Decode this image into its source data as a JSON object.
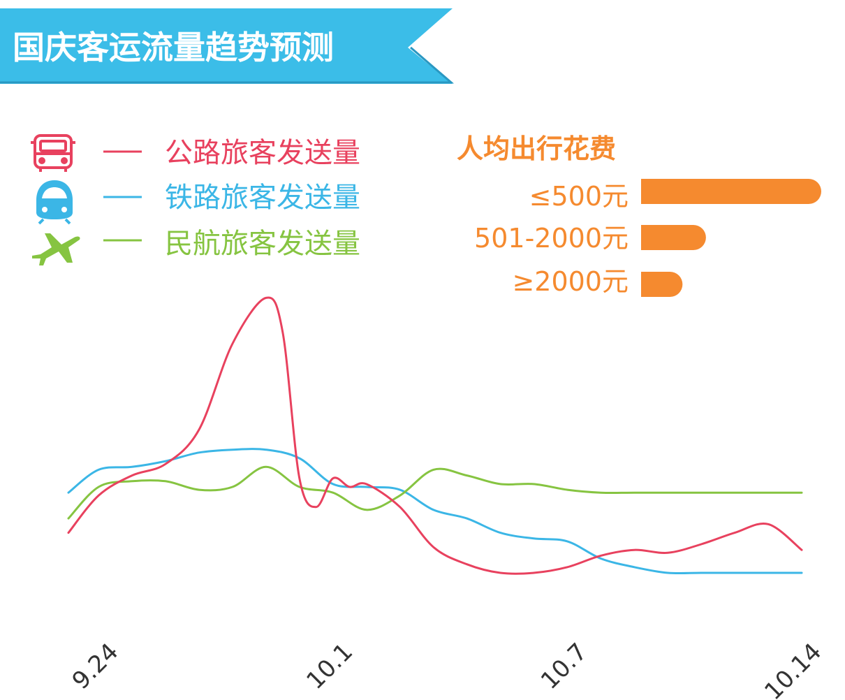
{
  "header": {
    "title": "国庆客运流量趋势预测",
    "color": "#3bbde8"
  },
  "legend": [
    {
      "label": "公路旅客发送量",
      "icon": "bus-icon",
      "color": "#e8415e"
    },
    {
      "label": "铁路旅客发送量",
      "icon": "train-icon",
      "color": "#3bb6e6"
    },
    {
      "label": "民航旅客发送量",
      "icon": "airplane-icon",
      "color": "#86c441"
    }
  ],
  "spending": {
    "title": "人均出行花费",
    "color": "#f58a2f",
    "items": [
      {
        "label": "≤500元",
        "value": 1.0
      },
      {
        "label": "501-2000元",
        "value": 0.36
      },
      {
        "label": "≥2000元",
        "value": 0.23
      }
    ]
  },
  "chart_data": {
    "type": "line",
    "title": "国庆客运流量趋势预测",
    "x_ticks": [
      "9.24",
      "10.1",
      "10.7",
      "10.14"
    ],
    "x_tick_positions": [
      0,
      7,
      14,
      21
    ],
    "x_range": [
      -0.9,
      21
    ],
    "y_axis_shown": false,
    "y_range": [
      0,
      100
    ],
    "grid": false,
    "series": [
      {
        "name": "公路旅客发送量",
        "color": "#e8415e",
        "points": [
          [
            -0.9,
            14
          ],
          [
            0,
            27
          ],
          [
            1,
            34
          ],
          [
            2,
            38
          ],
          [
            3,
            50
          ],
          [
            4,
            80
          ],
          [
            5,
            96
          ],
          [
            5.5,
            84
          ],
          [
            6,
            33
          ],
          [
            6.5,
            23
          ],
          [
            7,
            33
          ],
          [
            7.5,
            30
          ],
          [
            8,
            31
          ],
          [
            9,
            23
          ],
          [
            10,
            9
          ],
          [
            11,
            3
          ],
          [
            12,
            0
          ],
          [
            13,
            0
          ],
          [
            14,
            2
          ],
          [
            15,
            6
          ],
          [
            16,
            8
          ],
          [
            17,
            7
          ],
          [
            18,
            10
          ],
          [
            19,
            14
          ],
          [
            20,
            17
          ],
          [
            21,
            8
          ]
        ]
      },
      {
        "name": "铁路旅客发送量",
        "color": "#3bb6e6",
        "points": [
          [
            -0.9,
            28
          ],
          [
            0,
            36
          ],
          [
            1,
            37
          ],
          [
            2,
            39
          ],
          [
            3,
            42
          ],
          [
            4,
            43
          ],
          [
            5,
            43
          ],
          [
            6,
            40
          ],
          [
            7,
            31
          ],
          [
            8,
            30
          ],
          [
            9,
            29
          ],
          [
            10,
            22
          ],
          [
            11,
            19
          ],
          [
            12,
            14
          ],
          [
            13,
            12
          ],
          [
            14,
            11
          ],
          [
            15,
            5
          ],
          [
            16,
            2
          ],
          [
            17,
            0
          ],
          [
            18,
            0
          ],
          [
            19,
            0
          ],
          [
            20,
            0
          ],
          [
            21,
            0
          ]
        ]
      },
      {
        "name": "民航旅客发送量",
        "color": "#86c441",
        "points": [
          [
            -0.9,
            19
          ],
          [
            0,
            30
          ],
          [
            1,
            32
          ],
          [
            2,
            32
          ],
          [
            3,
            29
          ],
          [
            4,
            30
          ],
          [
            5,
            37
          ],
          [
            6,
            30
          ],
          [
            7,
            28
          ],
          [
            8,
            22
          ],
          [
            9,
            27
          ],
          [
            10,
            36
          ],
          [
            11,
            34
          ],
          [
            12,
            31
          ],
          [
            13,
            31
          ],
          [
            14,
            29
          ],
          [
            15,
            28
          ],
          [
            16,
            28
          ],
          [
            17,
            28
          ],
          [
            18,
            28
          ],
          [
            19,
            28
          ],
          [
            20,
            28
          ],
          [
            21,
            28
          ]
        ]
      }
    ]
  }
}
